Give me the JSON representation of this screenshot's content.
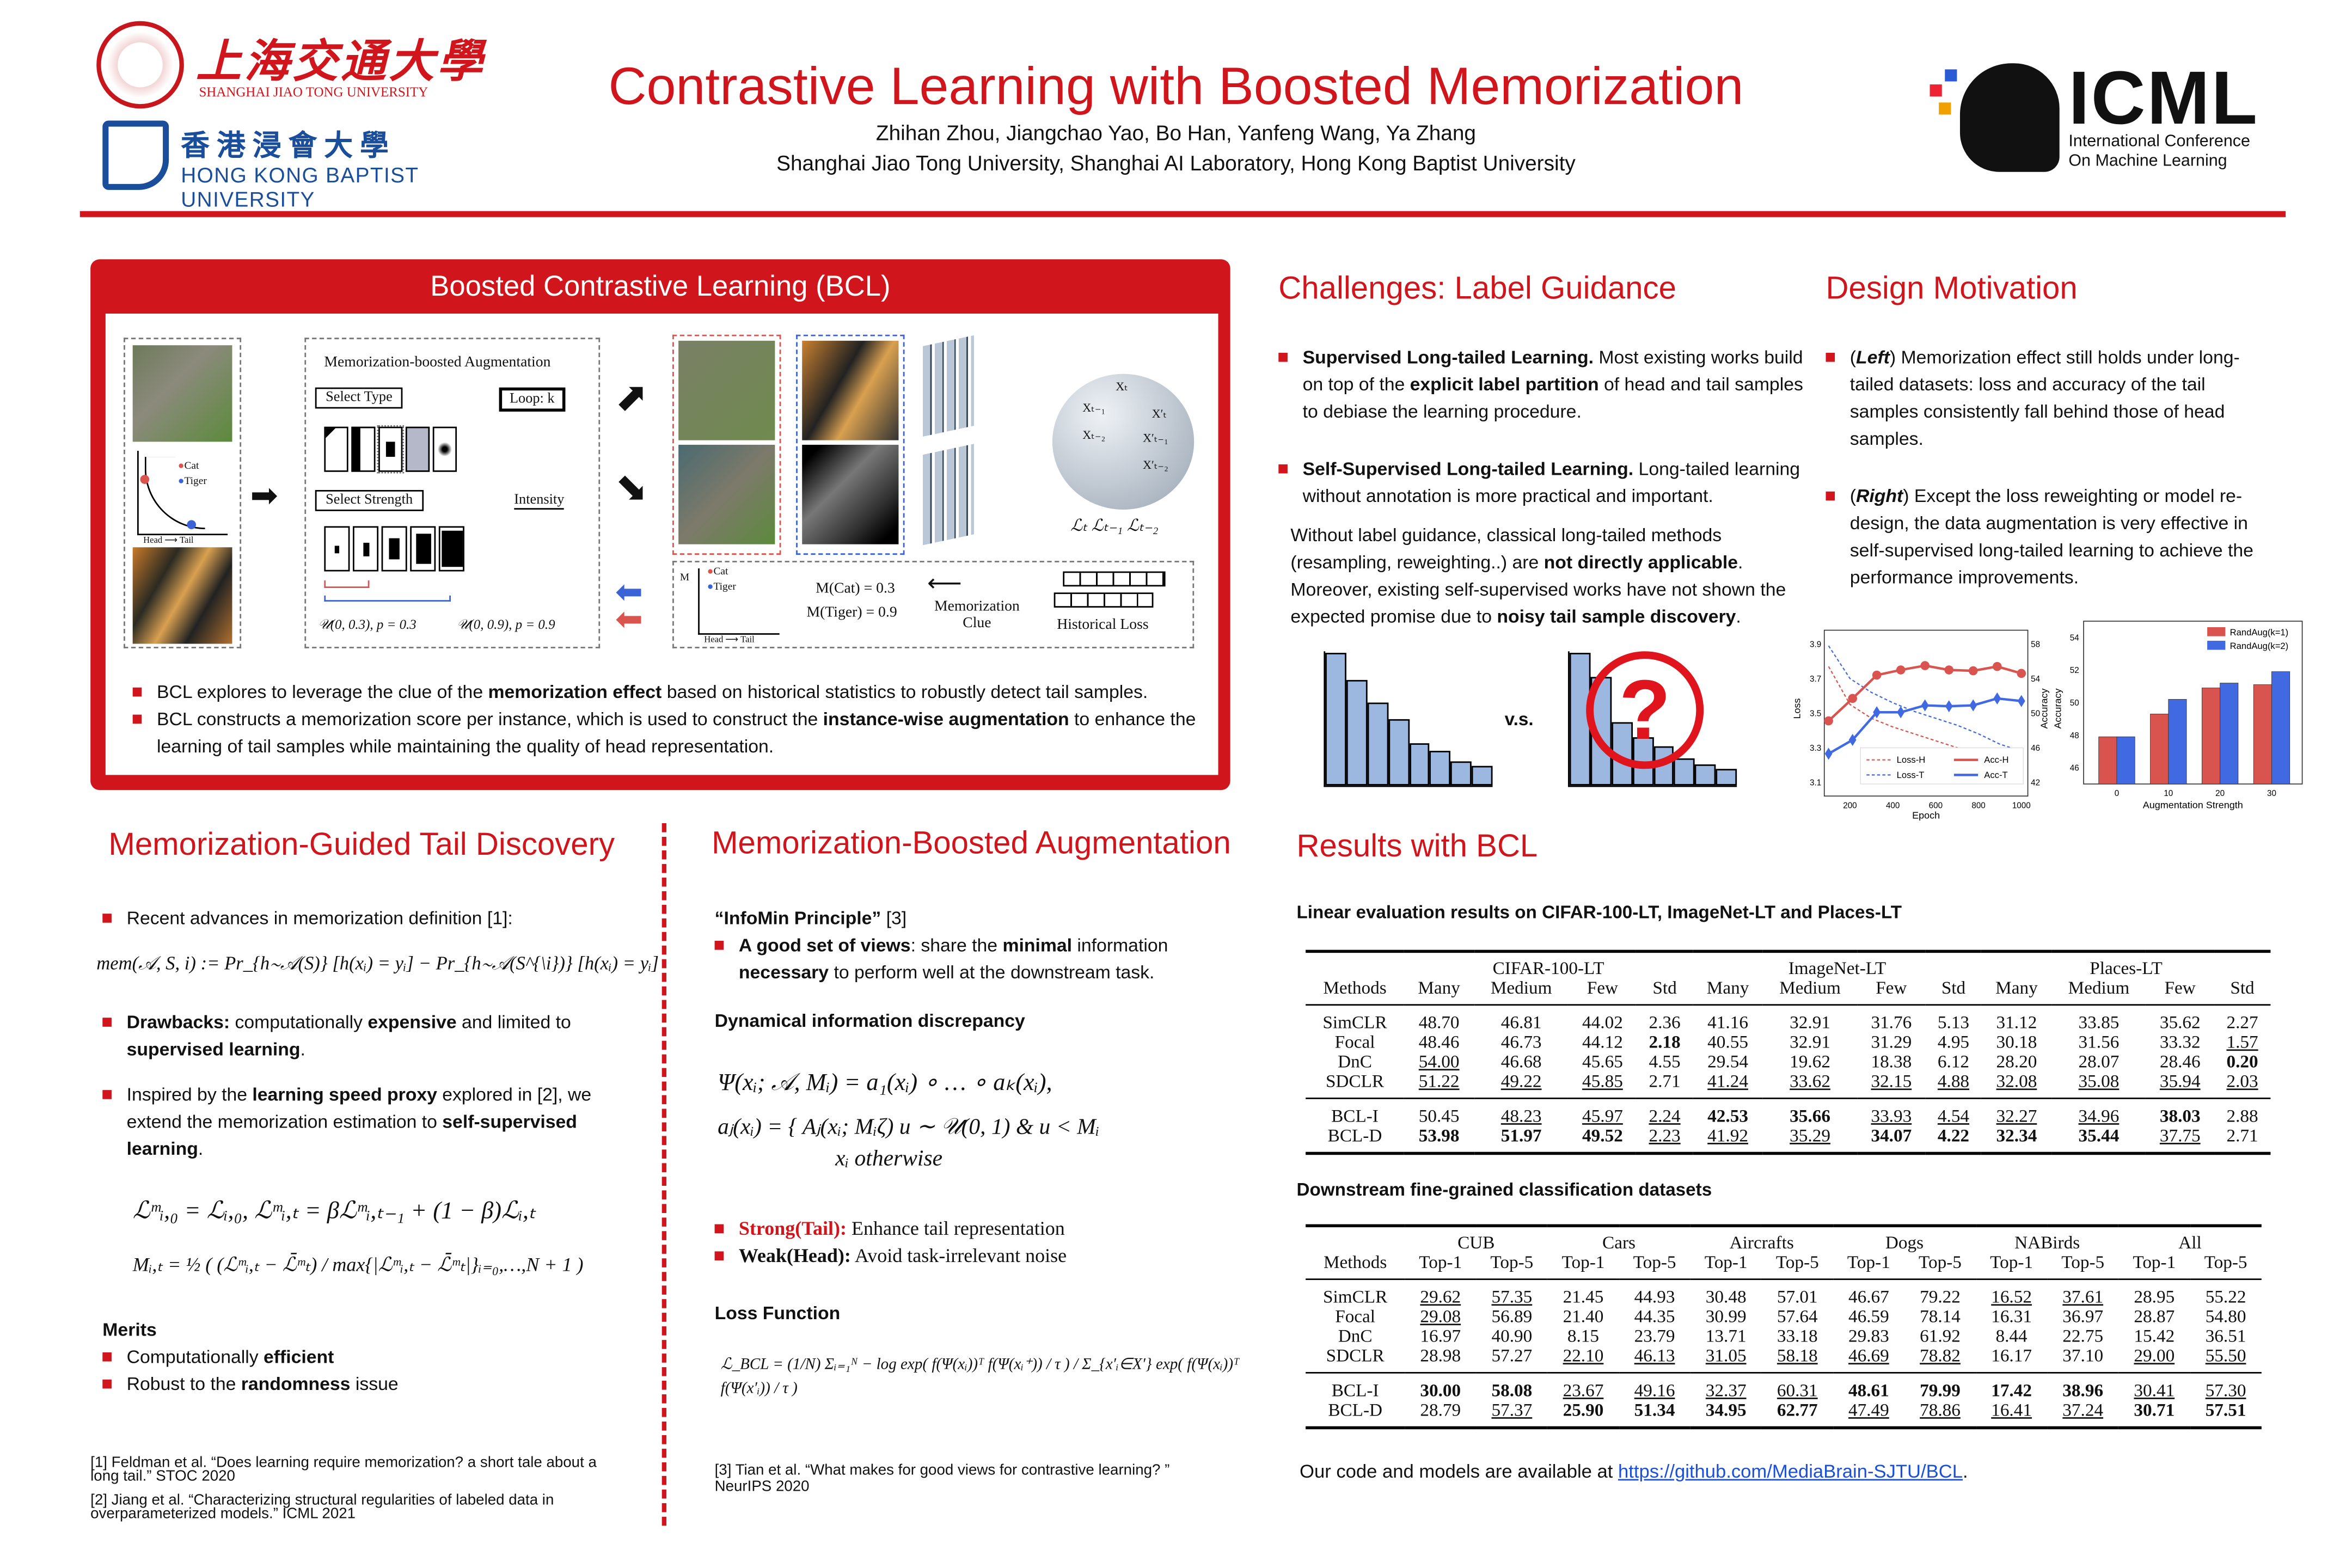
{
  "header": {
    "sjtu_name": "上海交通大學",
    "sjtu_en": "SHANGHAI JIAO TONG UNIVERSITY",
    "hkbu_name": "香 港 浸 會 大 學",
    "hkbu_en": "HONG KONG BAPTIST UNIVERSITY",
    "title": "Contrastive Learning with Boosted Memorization",
    "authors": "Zhihan Zhou, Jiangchao Yao, Bo Han, Yanfeng Wang, Ya Zhang",
    "affiliations": "Shanghai Jiao Tong University, Shanghai AI Laboratory, Hong Kong Baptist University",
    "icml": "ICML",
    "icml_line1": "International Conference",
    "icml_line2": "On Machine Learning"
  },
  "colors": {
    "accent": "#d0161c",
    "blue": "#3b63d6",
    "red_series": "#d9534f",
    "blue_series": "#4169e1"
  },
  "bcl": {
    "title": "Boosted Contrastive Learning (BCL)",
    "diagram": {
      "mba_title": "Memorization-boosted Augmentation",
      "select_type": "Select Type",
      "loop": "Loop: k",
      "select_strength": "Select Strength",
      "intensity": "Intensity",
      "u1": "𝒰(0, 0.3), p = 0.3",
      "u2": "𝒰(0, 0.9), p = 0.9",
      "cat": "Cat",
      "tiger": "Tiger",
      "head_tail": "Head ⟶ Tail",
      "m_axis": "M",
      "m_cat": "M(Cat) = 0.3",
      "m_tiger": "M(Tiger) = 0.9",
      "mem_clue": "Memorization Clue",
      "hist_loss": "Historical Loss",
      "xt": "Xₜ",
      "xt1": "Xₜ₋₁",
      "xt2": "Xₜ₋₂",
      "xpt": "X′ₜ",
      "xpt1": "X′ₜ₋₁",
      "xpt2": "X′ₜ₋₂",
      "losses": "ℒₜ ℒₜ₋₁ ℒₜ₋₂"
    },
    "bullets": [
      [
        {
          "t": "BCL explores to leverage the clue of the "
        },
        {
          "t": "memorization effect",
          "b": true
        },
        {
          "t": " based on historical statistics to robustly detect tail samples."
        }
      ],
      [
        {
          "t": "BCL constructs a memorization score per instance, which is used to construct the "
        },
        {
          "t": "instance-wise augmentation",
          "b": true
        },
        {
          "t": " to enhance the learning of tail samples while maintaining the quality of head representation."
        }
      ]
    ]
  },
  "challenges": {
    "title": "Challenges: Label Guidance",
    "bullets": [
      [
        {
          "t": "Supervised Long-tailed Learning.",
          "b": true
        },
        {
          "t": " Most existing works build on top of the "
        },
        {
          "t": "explicit label partition",
          "b": true
        },
        {
          "t": " of head and tail samples to debiase the learning procedure."
        }
      ],
      [
        {
          "t": "Self-Supervised Long-tailed Learning.",
          "b": true
        },
        {
          "t": " Long-tailed learning without annotation is more practical and important."
        }
      ]
    ],
    "para": [
      {
        "t": "Without label guidance, classical long-tailed methods (resampling, reweighting..) are "
      },
      {
        "t": "not directly applicable",
        "b": true
      },
      {
        "t": ". Moreover, existing self-supervised works have not shown the expected promise due to "
      },
      {
        "t": "noisy tail sample discovery",
        "b": true
      },
      {
        "t": "."
      }
    ],
    "vs": "v.s.",
    "question": "?",
    "hist_left": [
      1.0,
      0.8,
      0.62,
      0.5,
      0.32,
      0.26,
      0.18,
      0.15
    ],
    "hist_right": [
      1.0,
      0.82,
      0.48,
      0.36,
      0.3,
      0.2,
      0.16,
      0.12
    ]
  },
  "motivation": {
    "title": "Design Motivation",
    "bullets": [
      [
        {
          "t": "("
        },
        {
          "t": "Left",
          "b": true,
          "i": true
        },
        {
          "t": ") Memorization effect still holds under long-tailed datasets: loss and accuracy of the tail samples consistently fall behind those of head samples."
        }
      ],
      [
        {
          "t": "("
        },
        {
          "t": "Right",
          "b": true,
          "i": true
        },
        {
          "t": ") Except the loss reweighting or model re-design, the data augmentation is very effective in self-supervised long-tailed learning to achieve the performance improvements."
        }
      ]
    ]
  },
  "chart_data": [
    {
      "type": "line",
      "xlabel": "Epoch",
      "ylabel_left": "Loss",
      "ylabel_right": "Accuracy",
      "xticks": [
        200,
        400,
        600,
        800,
        1000
      ],
      "xlim": [
        80,
        1030
      ],
      "yticks_left": [
        3.1,
        3.3,
        3.5,
        3.7,
        3.9
      ],
      "ylim_left": [
        3.02,
        3.98
      ],
      "yticks_right": [
        42,
        46,
        50,
        54,
        58
      ],
      "ylim_right": [
        40.4,
        59.6
      ],
      "legend": "bottom",
      "grid": false,
      "series": [
        {
          "name": "Loss-H",
          "axis": "left",
          "style": "dashed",
          "color": "#d9534f",
          "x": [
            100,
            200,
            300,
            400,
            500,
            600,
            700,
            800,
            900,
            1000
          ],
          "y": [
            3.77,
            3.55,
            3.47,
            3.42,
            3.38,
            3.34,
            3.3,
            3.26,
            3.23,
            3.2
          ]
        },
        {
          "name": "Loss-T",
          "axis": "left",
          "style": "dashed",
          "color": "#4169e1",
          "x": [
            100,
            200,
            300,
            400,
            500,
            600,
            700,
            800,
            900,
            1000
          ],
          "y": [
            3.89,
            3.7,
            3.62,
            3.56,
            3.51,
            3.47,
            3.43,
            3.38,
            3.32,
            3.28
          ]
        },
        {
          "name": "Acc-H",
          "axis": "right",
          "marker": "circle",
          "color": "#d9534f",
          "x": [
            100,
            212,
            325,
            437,
            550,
            662,
            775,
            887,
            1000
          ],
          "y": [
            49.1,
            51.7,
            54.4,
            55.0,
            55.5,
            55.0,
            54.9,
            55.4,
            54.6
          ]
        },
        {
          "name": "Acc-T",
          "axis": "right",
          "marker": "diamond",
          "color": "#4169e1",
          "x": [
            100,
            212,
            325,
            437,
            550,
            662,
            775,
            887,
            1000
          ],
          "y": [
            45.3,
            46.9,
            50.1,
            50.1,
            50.9,
            50.8,
            50.9,
            51.7,
            51.4
          ]
        }
      ]
    },
    {
      "type": "bar",
      "xlabel": "Augmentation Strength",
      "ylabel": "Accuracy",
      "categories": [
        "0",
        "10",
        "20",
        "30"
      ],
      "yticks": [
        46,
        48,
        50,
        52,
        54
      ],
      "ylim": [
        45,
        55
      ],
      "legend": "top-right",
      "grid": false,
      "series": [
        {
          "name": "RandAug(k=1)",
          "color": "#d9534f",
          "values": [
            47.9,
            49.3,
            50.9,
            51.1
          ]
        },
        {
          "name": "RandAug(k=2)",
          "color": "#4169e1",
          "values": [
            47.9,
            50.2,
            51.2,
            51.9
          ]
        }
      ]
    }
  ],
  "tail": {
    "title": "Memorization-Guided Tail Discovery",
    "b1": [
      {
        "t": "Recent advances in memorization definition [1]:"
      }
    ],
    "formula1": "mem(𝒜, S, i) :=  Pr_{h∼𝒜(S)} [h(xᵢ) = yᵢ] − Pr_{h∼𝒜(S^{\\i})} [h(xᵢ) = yᵢ]",
    "b2": [
      {
        "t": "Drawbacks:",
        "b": true
      },
      {
        "t": " computationally "
      },
      {
        "t": "expensive",
        "b": true
      },
      {
        "t": " and limited to "
      },
      {
        "t": "supervised learning",
        "b": true
      },
      {
        "t": "."
      }
    ],
    "b3": [
      {
        "t": "Inspired by the "
      },
      {
        "t": "learning speed proxy",
        "b": true
      },
      {
        "t": " explored in [2], we extend the memorization estimation to "
      },
      {
        "t": "self-supervised learning",
        "b": true
      },
      {
        "t": "."
      }
    ],
    "formula2": "ℒᵐᵢ,₀ = ℒᵢ,₀,   ℒᵐᵢ,ₜ = βℒᵐᵢ,ₜ₋₁ + (1 − β)ℒᵢ,ₜ",
    "formula3": "Mᵢ,ₜ = ½ ( (ℒᵐᵢ,ₜ − ℒ̄ᵐₜ) / max{|ℒᵐᵢ,ₜ − ℒ̄ᵐₜ|}ᵢ₌₀,…,N + 1 )",
    "merits": "Merits",
    "m1": [
      {
        "t": "Computationally "
      },
      {
        "t": "efficient",
        "b": true
      }
    ],
    "m2": [
      {
        "t": "Robust to the "
      },
      {
        "t": "randomness",
        "b": true
      },
      {
        "t": " issue"
      }
    ],
    "ref1": "[1] Feldman et al. “Does learning require memorization? a short tale about a long tail.” STOC 2020",
    "ref2": "[2] Jiang et al. “Characterizing structural regularities of labeled data in overparameterized models.” ICML 2021"
  },
  "aug": {
    "title": "Memorization-Boosted Augmentation",
    "infomin": [
      {
        "t": "“InfoMin Principle”",
        "b": true
      },
      {
        "t": " [3]"
      }
    ],
    "b1": [
      {
        "t": "A good set of views",
        "b": true
      },
      {
        "t": ": share the "
      },
      {
        "t": "minimal",
        "b": true
      },
      {
        "t": " information "
      },
      {
        "t": "necessary",
        "b": true
      },
      {
        "t": " to perform well at the downstream task."
      }
    ],
    "dyn": "Dynamical information discrepancy",
    "formula1": "Ψ(xᵢ; 𝒜, Mᵢ) = a₁(xᵢ) ∘ … ∘ aₖ(xᵢ),",
    "formula2a": "aⱼ(xᵢ) = { Aⱼ(xᵢ; Mᵢζ)     u ∼ 𝒰(0, 1) & u < Mᵢ",
    "formula2b": "xᵢ     otherwise",
    "s1": [
      {
        "t": "Strong(Tail):",
        "b": true,
        "r": true
      },
      {
        "t": " Enhance tail representation"
      }
    ],
    "s2": [
      {
        "t": "Weak(Head):",
        "b": true
      },
      {
        "t": " Avoid task-irrelevant noise"
      }
    ],
    "loss": "Loss Function",
    "formula3": "ℒ_BCL = (1/N) Σᵢ₌₁ᴺ − log  exp( f(Ψ(xᵢ))ᵀ f(Ψ(xᵢ⁺)) / τ ) / Σ_{x′ᵢ∈X′} exp( f(Ψ(xᵢ))ᵀ f(Ψ(x′ᵢ)) / τ )",
    "ref3": "[3] Tian et al. “What makes for good views for contrastive learning? ” NeurIPS 2020"
  },
  "results": {
    "title": "Results with BCL",
    "t1_caption": "Linear evaluation results on CIFAR-100-LT, ImageNet-LT and Places-LT",
    "t1_groups": [
      "CIFAR-100-LT",
      "ImageNet-LT",
      "Places-LT"
    ],
    "t1_cols": [
      "Methods",
      "Many",
      "Medium",
      "Few",
      "Std",
      "Many",
      "Medium",
      "Few",
      "Std",
      "Many",
      "Medium",
      "Few",
      "Std"
    ],
    "t1_rows": [
      {
        "m": "SimCLR",
        "v": [
          "48.70",
          "46.81",
          "44.02",
          "2.36",
          "41.16",
          "32.91",
          "31.76",
          "5.13",
          "31.12",
          "33.85",
          "35.62",
          "2.27"
        ],
        "s": "............"
      },
      {
        "m": "Focal",
        "v": [
          "48.46",
          "46.73",
          "44.12",
          "2.18",
          "40.55",
          "32.91",
          "31.29",
          "4.95",
          "30.18",
          "31.56",
          "33.32",
          "1.57"
        ],
        "s": "...b.......u"
      },
      {
        "m": "DnC",
        "v": [
          "54.00",
          "46.68",
          "45.65",
          "4.55",
          "29.54",
          "19.62",
          "18.38",
          "6.12",
          "28.20",
          "28.07",
          "28.46",
          "0.20"
        ],
        "s": "u..........b"
      },
      {
        "m": "SDCLR",
        "v": [
          "51.22",
          "49.22",
          "45.85",
          "2.71",
          "41.24",
          "33.62",
          "32.15",
          "4.88",
          "32.08",
          "35.08",
          "35.94",
          "2.03"
        ],
        "s": "uuu.uuuuuuuu"
      },
      {
        "m": "BCL-I",
        "v": [
          "50.45",
          "48.23",
          "45.97",
          "2.24",
          "42.53",
          "35.66",
          "33.93",
          "4.54",
          "32.27",
          "34.96",
          "38.03",
          "2.88"
        ],
        "s": ".uuubbuuuub."
      },
      {
        "m": "BCL-D",
        "v": [
          "53.98",
          "51.97",
          "49.52",
          "2.23",
          "41.92",
          "35.29",
          "34.07",
          "4.22",
          "32.34",
          "35.44",
          "37.75",
          "2.71"
        ],
        "s": "bbbuuubbbbu."
      }
    ],
    "t2_caption": "Downstream fine-grained classification datasets",
    "t2_groups": [
      "CUB",
      "Cars",
      "Aircrafts",
      "Dogs",
      "NABirds",
      "All"
    ],
    "t2_cols": [
      "Methods",
      "Top-1",
      "Top-5",
      "Top-1",
      "Top-5",
      "Top-1",
      "Top-5",
      "Top-1",
      "Top-5",
      "Top-1",
      "Top-5",
      "Top-1",
      "Top-5"
    ],
    "t2_rows": [
      {
        "m": "SimCLR",
        "v": [
          "29.62",
          "57.35",
          "21.45",
          "44.93",
          "30.48",
          "57.01",
          "46.67",
          "79.22",
          "16.52",
          "37.61",
          "28.95",
          "55.22"
        ],
        "s": "uu......uu.."
      },
      {
        "m": "Focal",
        "v": [
          "29.08",
          "56.89",
          "21.40",
          "44.35",
          "30.99",
          "57.64",
          "46.59",
          "78.14",
          "16.31",
          "36.97",
          "28.87",
          "54.80"
        ],
        "s": "u..........."
      },
      {
        "m": "DnC",
        "v": [
          "16.97",
          "40.90",
          "8.15",
          "23.79",
          "13.71",
          "33.18",
          "29.83",
          "61.92",
          "8.44",
          "22.75",
          "15.42",
          "36.51"
        ],
        "s": "............"
      },
      {
        "m": "SDCLR",
        "v": [
          "28.98",
          "57.27",
          "22.10",
          "46.13",
          "31.05",
          "58.18",
          "46.69",
          "78.82",
          "16.17",
          "37.10",
          "29.00",
          "55.50"
        ],
        "s": "..uuuuuu..uu"
      },
      {
        "m": "BCL-I",
        "v": [
          "30.00",
          "58.08",
          "23.67",
          "49.16",
          "32.37",
          "60.31",
          "48.61",
          "79.99",
          "17.42",
          "38.96",
          "30.41",
          "57.30"
        ],
        "s": "bbuuuubbbbuu"
      },
      {
        "m": "BCL-D",
        "v": [
          "28.79",
          "57.37",
          "25.90",
          "51.34",
          "34.95",
          "62.77",
          "47.49",
          "78.86",
          "16.41",
          "37.24",
          "30.71",
          "57.51"
        ],
        "s": ".ubbbbuuuubb"
      }
    ],
    "code_text": "Our code and models are available at ",
    "code_link": "https://github.com/MediaBrain-SJTU/BCL",
    "code_end": "."
  }
}
